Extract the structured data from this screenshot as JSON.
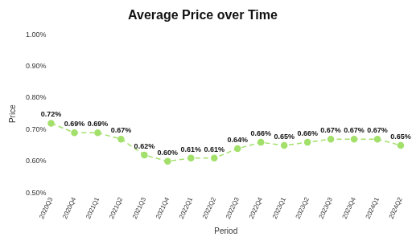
{
  "chart_data": {
    "type": "line",
    "title": "Average Price over Time",
    "x_label": "Period",
    "y_label": "Price",
    "categories": [
      "2020Q3",
      "2020Q4",
      "2021Q1",
      "2021Q2",
      "2021Q3",
      "2021Q4",
      "2022Q1",
      "2022Q2",
      "2022Q3",
      "2022Q4",
      "2023Q1",
      "2023Q2",
      "2023Q3",
      "2023Q4",
      "2024Q1",
      "2024Q2"
    ],
    "values": [
      0.72,
      0.69,
      0.69,
      0.67,
      0.62,
      0.6,
      0.61,
      0.61,
      0.64,
      0.66,
      0.65,
      0.66,
      0.67,
      0.67,
      0.67,
      0.65
    ],
    "value_labels": [
      "0.72%",
      "0.69%",
      "0.69%",
      "0.67%",
      "0.62%",
      "0.60%",
      "0.61%",
      "0.61%",
      "0.64%",
      "0.66%",
      "0.65%",
      "0.66%",
      "0.67%",
      "0.67%",
      "0.67%",
      "0.65%"
    ],
    "color": "#a3e06b",
    "marker": "circle",
    "line_style": "dashed",
    "data_labels": true,
    "grid": false,
    "ylim": [
      0.5,
      1.0
    ],
    "yticks": [
      {
        "value": 0.5,
        "label": "0.50%"
      },
      {
        "value": 0.6,
        "label": "0.60%"
      },
      {
        "value": 0.7,
        "label": "0.70%"
      },
      {
        "value": 0.8,
        "label": "0.80%"
      },
      {
        "value": 0.9,
        "label": "0.90%"
      },
      {
        "value": 1.0,
        "label": "1.00%"
      }
    ]
  }
}
